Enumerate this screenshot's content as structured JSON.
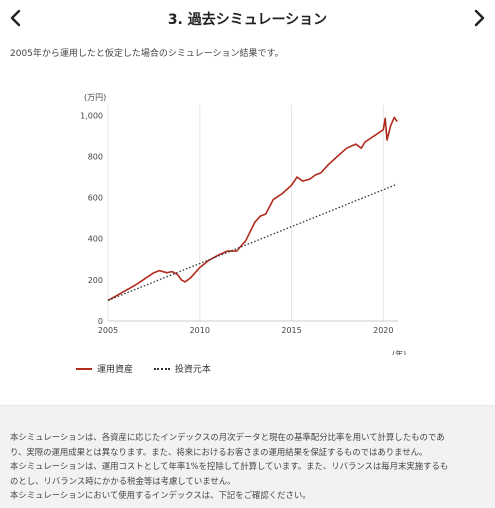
{
  "header": {
    "title": "3. 過去シミュレーション",
    "subtitle": "2005年から運用したと仮定した場合のシミュレーション結果です。"
  },
  "legend": {
    "asset_label": "運用資産",
    "principal_label": "投資元本"
  },
  "notes": [
    "本シミュレーションは、各資産に応じたインデックスの月次データと現在の基準配分比率を用いて計算したものであ",
    "り、実際の運用成果とは異なります。また、将来におけるお客さまの運用結果を保証するものではありません。",
    "本シミュレーションは、運用コストとして年率1%を控除して計算しています。また、リバランスは毎月末実施するも",
    "のとし、リバランス時にかかる税金等は考慮していません。",
    "本シミュレーションにおいて使用するインデックスは、下記をご確認ください。"
  ],
  "colors": {
    "asset_line": "#b22a1c",
    "principal_line": "#333333",
    "grid": "#e5e5e5"
  },
  "chart_data": {
    "type": "line",
    "y_unit": "(万円)",
    "x_unit": "(年)",
    "xlim": [
      2005,
      2020.8
    ],
    "ylim": [
      0,
      1050
    ],
    "x_ticks": [
      2005,
      2010,
      2015,
      2020
    ],
    "x_tick_labels": [
      "2005",
      "2010",
      "2015",
      "2020"
    ],
    "y_ticks": [
      0,
      200,
      400,
      600,
      800,
      1000
    ],
    "y_tick_labels": [
      "0",
      "200",
      "400",
      "600",
      "800",
      "1,000"
    ],
    "grid": "vertical",
    "legend_position": "bottom-left",
    "series": [
      {
        "name": "運用資産",
        "style": "solid",
        "x": [
          2005.0,
          2005.5,
          2006.0,
          2006.5,
          2007.0,
          2007.5,
          2007.8,
          2008.2,
          2008.5,
          2008.8,
          2009.0,
          2009.2,
          2009.5,
          2010.0,
          2010.5,
          2011.0,
          2011.5,
          2012.0,
          2012.5,
          2013.0,
          2013.3,
          2013.6,
          2014.0,
          2014.5,
          2015.0,
          2015.3,
          2015.6,
          2016.0,
          2016.3,
          2016.6,
          2017.0,
          2017.5,
          2018.0,
          2018.5,
          2018.8,
          2019.0,
          2019.5,
          2020.0,
          2020.1,
          2020.2,
          2020.4,
          2020.6,
          2020.75
        ],
        "values": [
          100,
          125,
          150,
          175,
          205,
          235,
          245,
          235,
          240,
          225,
          200,
          190,
          210,
          260,
          295,
          320,
          340,
          340,
          390,
          480,
          510,
          520,
          590,
          620,
          660,
          700,
          680,
          690,
          710,
          720,
          760,
          800,
          840,
          860,
          840,
          870,
          900,
          930,
          985,
          880,
          950,
          990,
          970
        ]
      },
      {
        "name": "投資元本",
        "style": "dotted",
        "x": [
          2005.0,
          2020.75
        ],
        "values": [
          100,
          665
        ]
      }
    ]
  }
}
